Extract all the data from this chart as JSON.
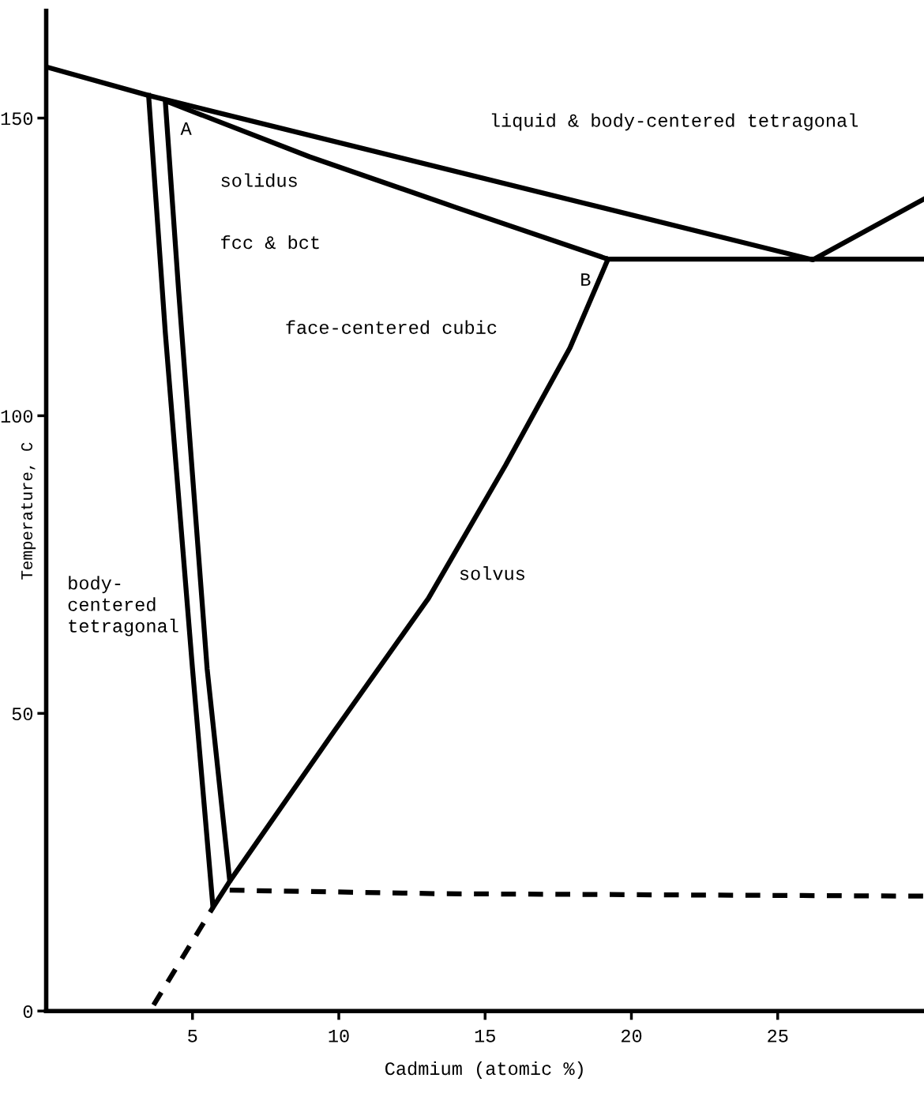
{
  "chart_data": {
    "type": "line",
    "xlabel": "Cadmium (atomic %)",
    "ylabel": "Temperature, C",
    "xlim": [
      0,
      30
    ],
    "ylim": [
      0,
      168
    ],
    "xticks": [
      5,
      10,
      15,
      20,
      25
    ],
    "yticks": [
      0,
      50,
      100,
      150
    ],
    "grid": false,
    "legend": false,
    "marker": "none",
    "series": [
      {
        "color": "#000000",
        "line_style": "solid",
        "x": [
          0,
          3.5,
          26.2,
          30
        ],
        "values": [
          158.6,
          153.8,
          126.2,
          136.4
        ]
      },
      {
        "color": "#000000",
        "line_style": "solid",
        "x": [
          6.27,
          5.5,
          4.53,
          4.07,
          9,
          14,
          19.2,
          30
        ],
        "values": [
          22,
          57.5,
          120.7,
          152.9,
          143.5,
          135,
          126.3,
          126.3
        ]
      },
      {
        "color": "#000000",
        "line_style": "solid",
        "x": [
          3.5,
          4.07,
          5.0,
          5.7,
          6.3,
          9.84,
          13.06,
          15.7,
          17.9,
          19.2
        ],
        "values": [
          153.8,
          114,
          57.5,
          17.4,
          22,
          47,
          69.3,
          91.7,
          111.4,
          126.3
        ]
      },
      {
        "color": "#000000",
        "line_style": "dashed",
        "x": [
          3.67,
          5.7
        ],
        "values": [
          1,
          17.4
        ]
      },
      {
        "color": "#000000",
        "line_style": "dashed",
        "x": [
          6.27,
          13.6,
          30
        ],
        "values": [
          20.3,
          19.7,
          19.3
        ]
      }
    ],
    "annotations": [
      "A",
      "B",
      "solidus",
      "liquid & body-centered tetragonal",
      "fcc & bct",
      "face-centered cubic",
      "solvus",
      "body-\ncentered\ntetragonal"
    ]
  }
}
